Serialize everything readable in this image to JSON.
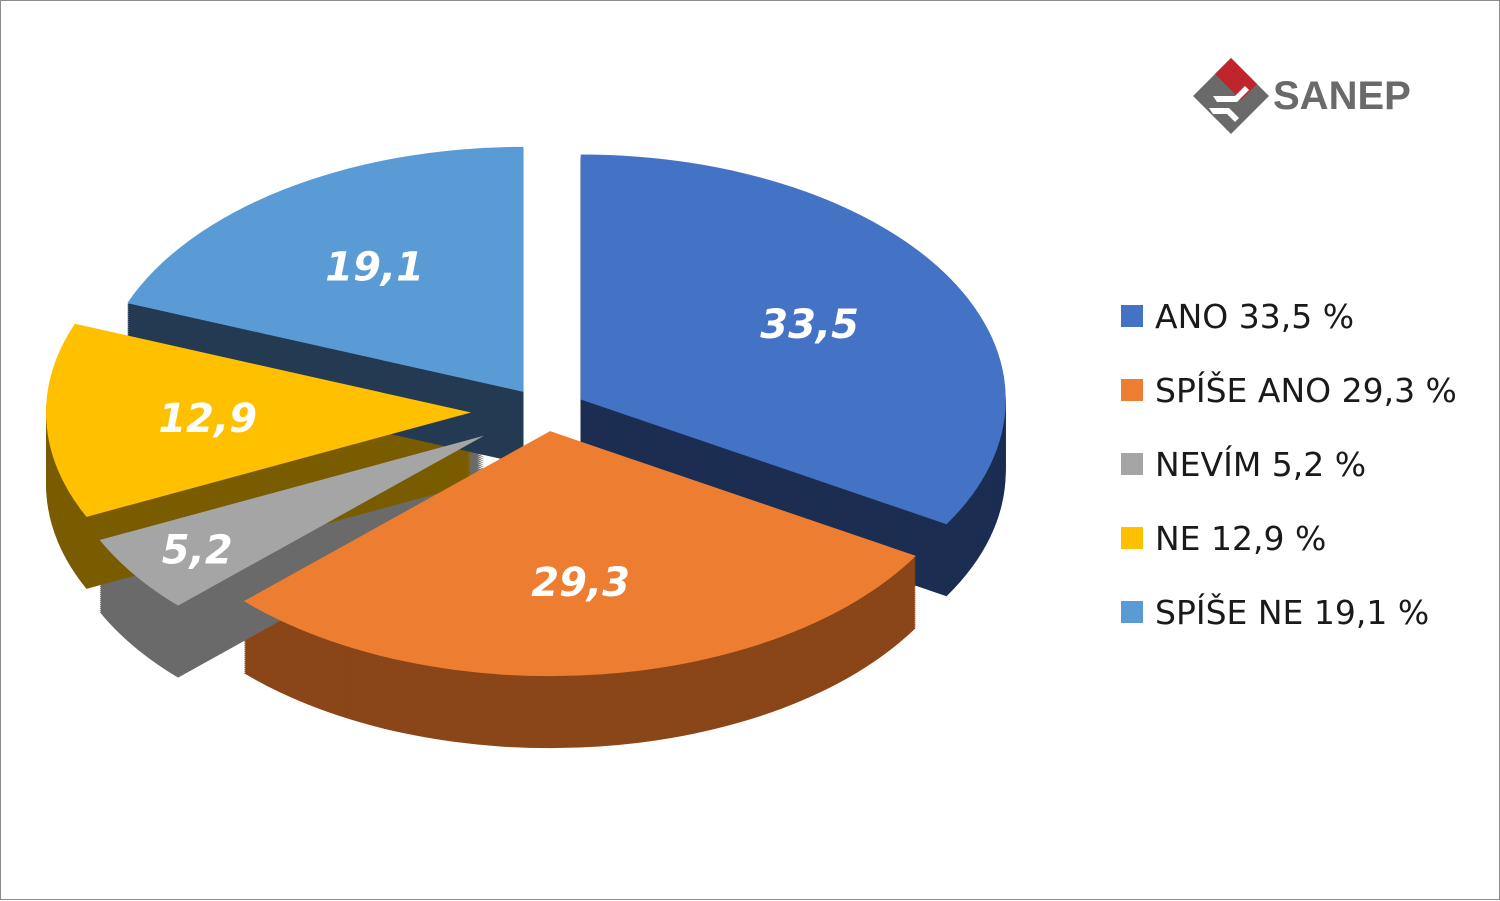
{
  "brand": {
    "name": "SANEP",
    "logo_colors": [
      "#c0242c",
      "#6a6a6a"
    ]
  },
  "chart_data": {
    "type": "pie",
    "title": "",
    "slices": [
      {
        "label": "ANO",
        "value": 33.5,
        "data_label": "33,5",
        "legend": "ANO 33,5 %",
        "color": "#4472c4",
        "side_color": "#1c2d52"
      },
      {
        "label": "SPÍŠE ANO",
        "value": 29.3,
        "data_label": "29,3",
        "legend": "SPÍŠE ANO 29,3 %",
        "color": "#ed7d31",
        "side_color": "#8a4518"
      },
      {
        "label": "NEVÍM",
        "value": 5.2,
        "data_label": "5,2",
        "legend": "NEVÍM 5,2 %",
        "color": "#a5a5a5",
        "side_color": "#6a6a6a"
      },
      {
        "label": "NE",
        "value": 12.9,
        "data_label": "12,9",
        "legend": "NE 12,9 %",
        "color": "#ffc000",
        "side_color": "#7a5c00"
      },
      {
        "label": "SPÍŠE NE",
        "value": 19.1,
        "data_label": "19,1",
        "legend": "SPÍŠE NE 19,1 %",
        "color": "#5b9bd5",
        "side_color": "#243a52"
      }
    ],
    "legend_position": "right",
    "style": "3d-exploded"
  }
}
